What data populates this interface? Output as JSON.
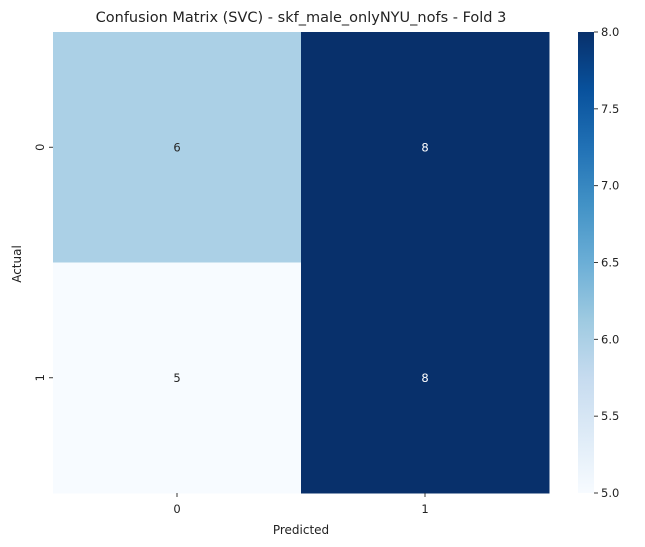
{
  "chart_data": {
    "type": "heatmap",
    "title": "Confusion Matrix (SVC) - skf_male_onlyNYU_nofs - Fold 3",
    "xlabel": "Predicted",
    "ylabel": "Actual",
    "x_categories": [
      "0",
      "1"
    ],
    "y_categories": [
      "0",
      "1"
    ],
    "values": [
      [
        6,
        8
      ],
      [
        5,
        8
      ]
    ],
    "colormap": "Blues",
    "color_range": [
      5.0,
      8.0
    ],
    "colorbar_ticks": [
      "5.0",
      "5.5",
      "6.0",
      "6.5",
      "7.0",
      "7.5",
      "8.0"
    ],
    "colorbar_tick_values": [
      5.0,
      5.5,
      6.0,
      6.5,
      7.0,
      7.5,
      8.0
    ],
    "colorbar_placement": "right",
    "low_color": "#f7fbff",
    "high_color": "#08306b"
  }
}
